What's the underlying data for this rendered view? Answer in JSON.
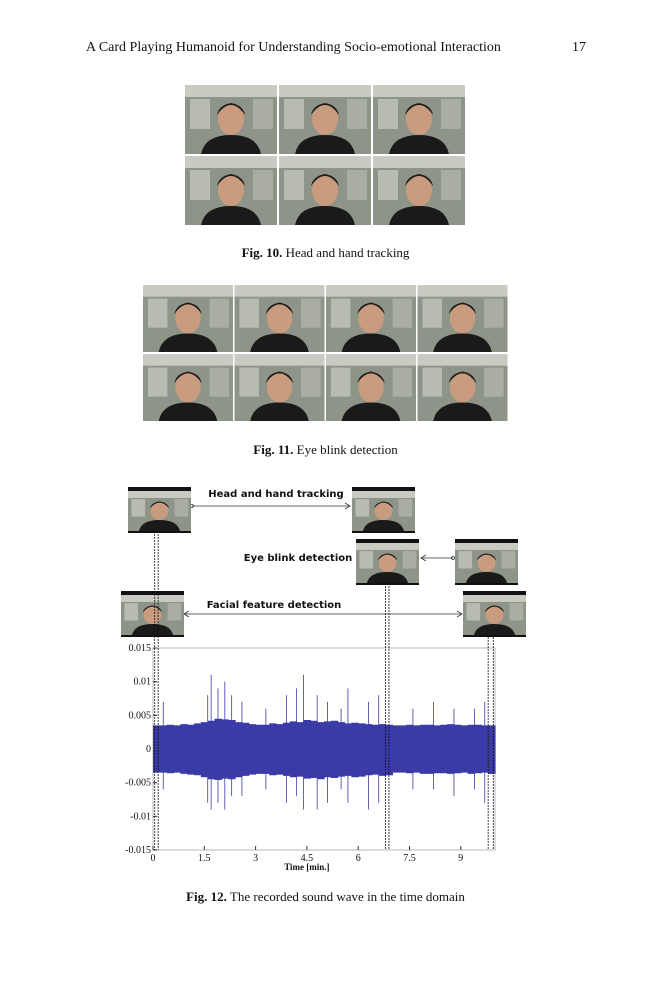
{
  "header": {
    "title": "A Card Playing Humanoid for Understanding Socio-emotional Interaction",
    "page": "17"
  },
  "figures": [
    {
      "label": "Fig. 10.",
      "caption": "Head and hand tracking"
    },
    {
      "label": "Fig. 11.",
      "caption": "Eye blink detection"
    },
    {
      "label": "Fig. 12.",
      "caption": "The recorded sound wave in the time domain",
      "annotations": [
        "Head and hand tracking",
        "Eye blink detection",
        "Facial feature detection"
      ]
    }
  ],
  "chart_data": {
    "type": "waveform",
    "color": "#3b3ba8",
    "xlabel": "Time [min.]",
    "xlim": [
      0,
      10
    ],
    "xticks": [
      0,
      1.5,
      3,
      4.5,
      6,
      7.5,
      9
    ],
    "ylim": [
      -0.015,
      0.015
    ],
    "yticks": [
      0.015,
      0.01,
      0.005,
      0,
      -0.005,
      -0.01,
      -0.015
    ],
    "event_lines": [
      0.05,
      0.15,
      6.8,
      6.9,
      9.8,
      9.95
    ],
    "band": {
      "x": [
        0,
        0.2,
        0.4,
        0.6,
        0.8,
        1,
        1.2,
        1.4,
        1.6,
        1.8,
        2,
        2.2,
        2.4,
        2.6,
        2.8,
        3,
        3.2,
        3.4,
        3.6,
        3.8,
        4,
        4.2,
        4.4,
        4.6,
        4.8,
        5,
        5.2,
        5.4,
        5.6,
        5.8,
        6,
        6.2,
        6.4,
        6.6,
        6.8,
        7,
        7.2,
        7.4,
        7.6,
        7.8,
        8,
        8.2,
        8.4,
        8.6,
        8.8,
        9,
        9.2,
        9.4,
        9.6,
        9.8
      ],
      "high": [
        0.0035,
        0.0035,
        0.0036,
        0.0035,
        0.0037,
        0.0036,
        0.0038,
        0.004,
        0.0042,
        0.0045,
        0.0044,
        0.0043,
        0.004,
        0.0039,
        0.0037,
        0.0036,
        0.0036,
        0.0038,
        0.0037,
        0.0039,
        0.0041,
        0.004,
        0.0043,
        0.0042,
        0.004,
        0.0041,
        0.0042,
        0.004,
        0.0038,
        0.0039,
        0.0038,
        0.0037,
        0.0036,
        0.0037,
        0.0036,
        0.0035,
        0.0035,
        0.0036,
        0.0035,
        0.0036,
        0.0036,
        0.0035,
        0.0036,
        0.0037,
        0.0036,
        0.0035,
        0.0036,
        0.0036,
        0.0035,
        0.0035
      ],
      "low": [
        -0.0035,
        -0.0035,
        -0.0036,
        -0.0035,
        -0.0037,
        -0.0038,
        -0.0039,
        -0.0042,
        -0.0045,
        -0.0046,
        -0.0044,
        -0.0045,
        -0.0042,
        -0.004,
        -0.0038,
        -0.0037,
        -0.0037,
        -0.0039,
        -0.0038,
        -0.004,
        -0.0042,
        -0.0041,
        -0.0044,
        -0.0043,
        -0.0045,
        -0.0042,
        -0.0043,
        -0.0041,
        -0.004,
        -0.0042,
        -0.0041,
        -0.0039,
        -0.0038,
        -0.004,
        -0.0039,
        -0.0035,
        -0.0035,
        -0.0036,
        -0.0035,
        -0.0037,
        -0.0037,
        -0.0036,
        -0.0036,
        -0.0037,
        -0.0036,
        -0.0035,
        -0.0037,
        -0.0036,
        -0.0035,
        -0.0037
      ]
    },
    "spikes": {
      "x": [
        0.3,
        1.6,
        1.7,
        1.9,
        2.1,
        2.3,
        2.6,
        3.3,
        3.9,
        4.2,
        4.4,
        4.8,
        5.1,
        5.5,
        5.7,
        6.3,
        6.6,
        7.6,
        8.2,
        8.8,
        9.4,
        9.7
      ],
      "high": [
        0.007,
        0.008,
        0.011,
        0.009,
        0.01,
        0.008,
        0.007,
        0.006,
        0.008,
        0.009,
        0.011,
        0.008,
        0.007,
        0.006,
        0.009,
        0.007,
        0.008,
        0.006,
        0.007,
        0.006,
        0.006,
        0.007
      ],
      "low": [
        -0.006,
        -0.008,
        -0.009,
        -0.008,
        -0.009,
        -0.007,
        -0.007,
        -0.006,
        -0.008,
        -0.007,
        -0.009,
        -0.009,
        -0.008,
        -0.006,
        -0.008,
        -0.009,
        -0.008,
        -0.006,
        -0.006,
        -0.007,
        -0.006,
        -0.008
      ]
    }
  }
}
